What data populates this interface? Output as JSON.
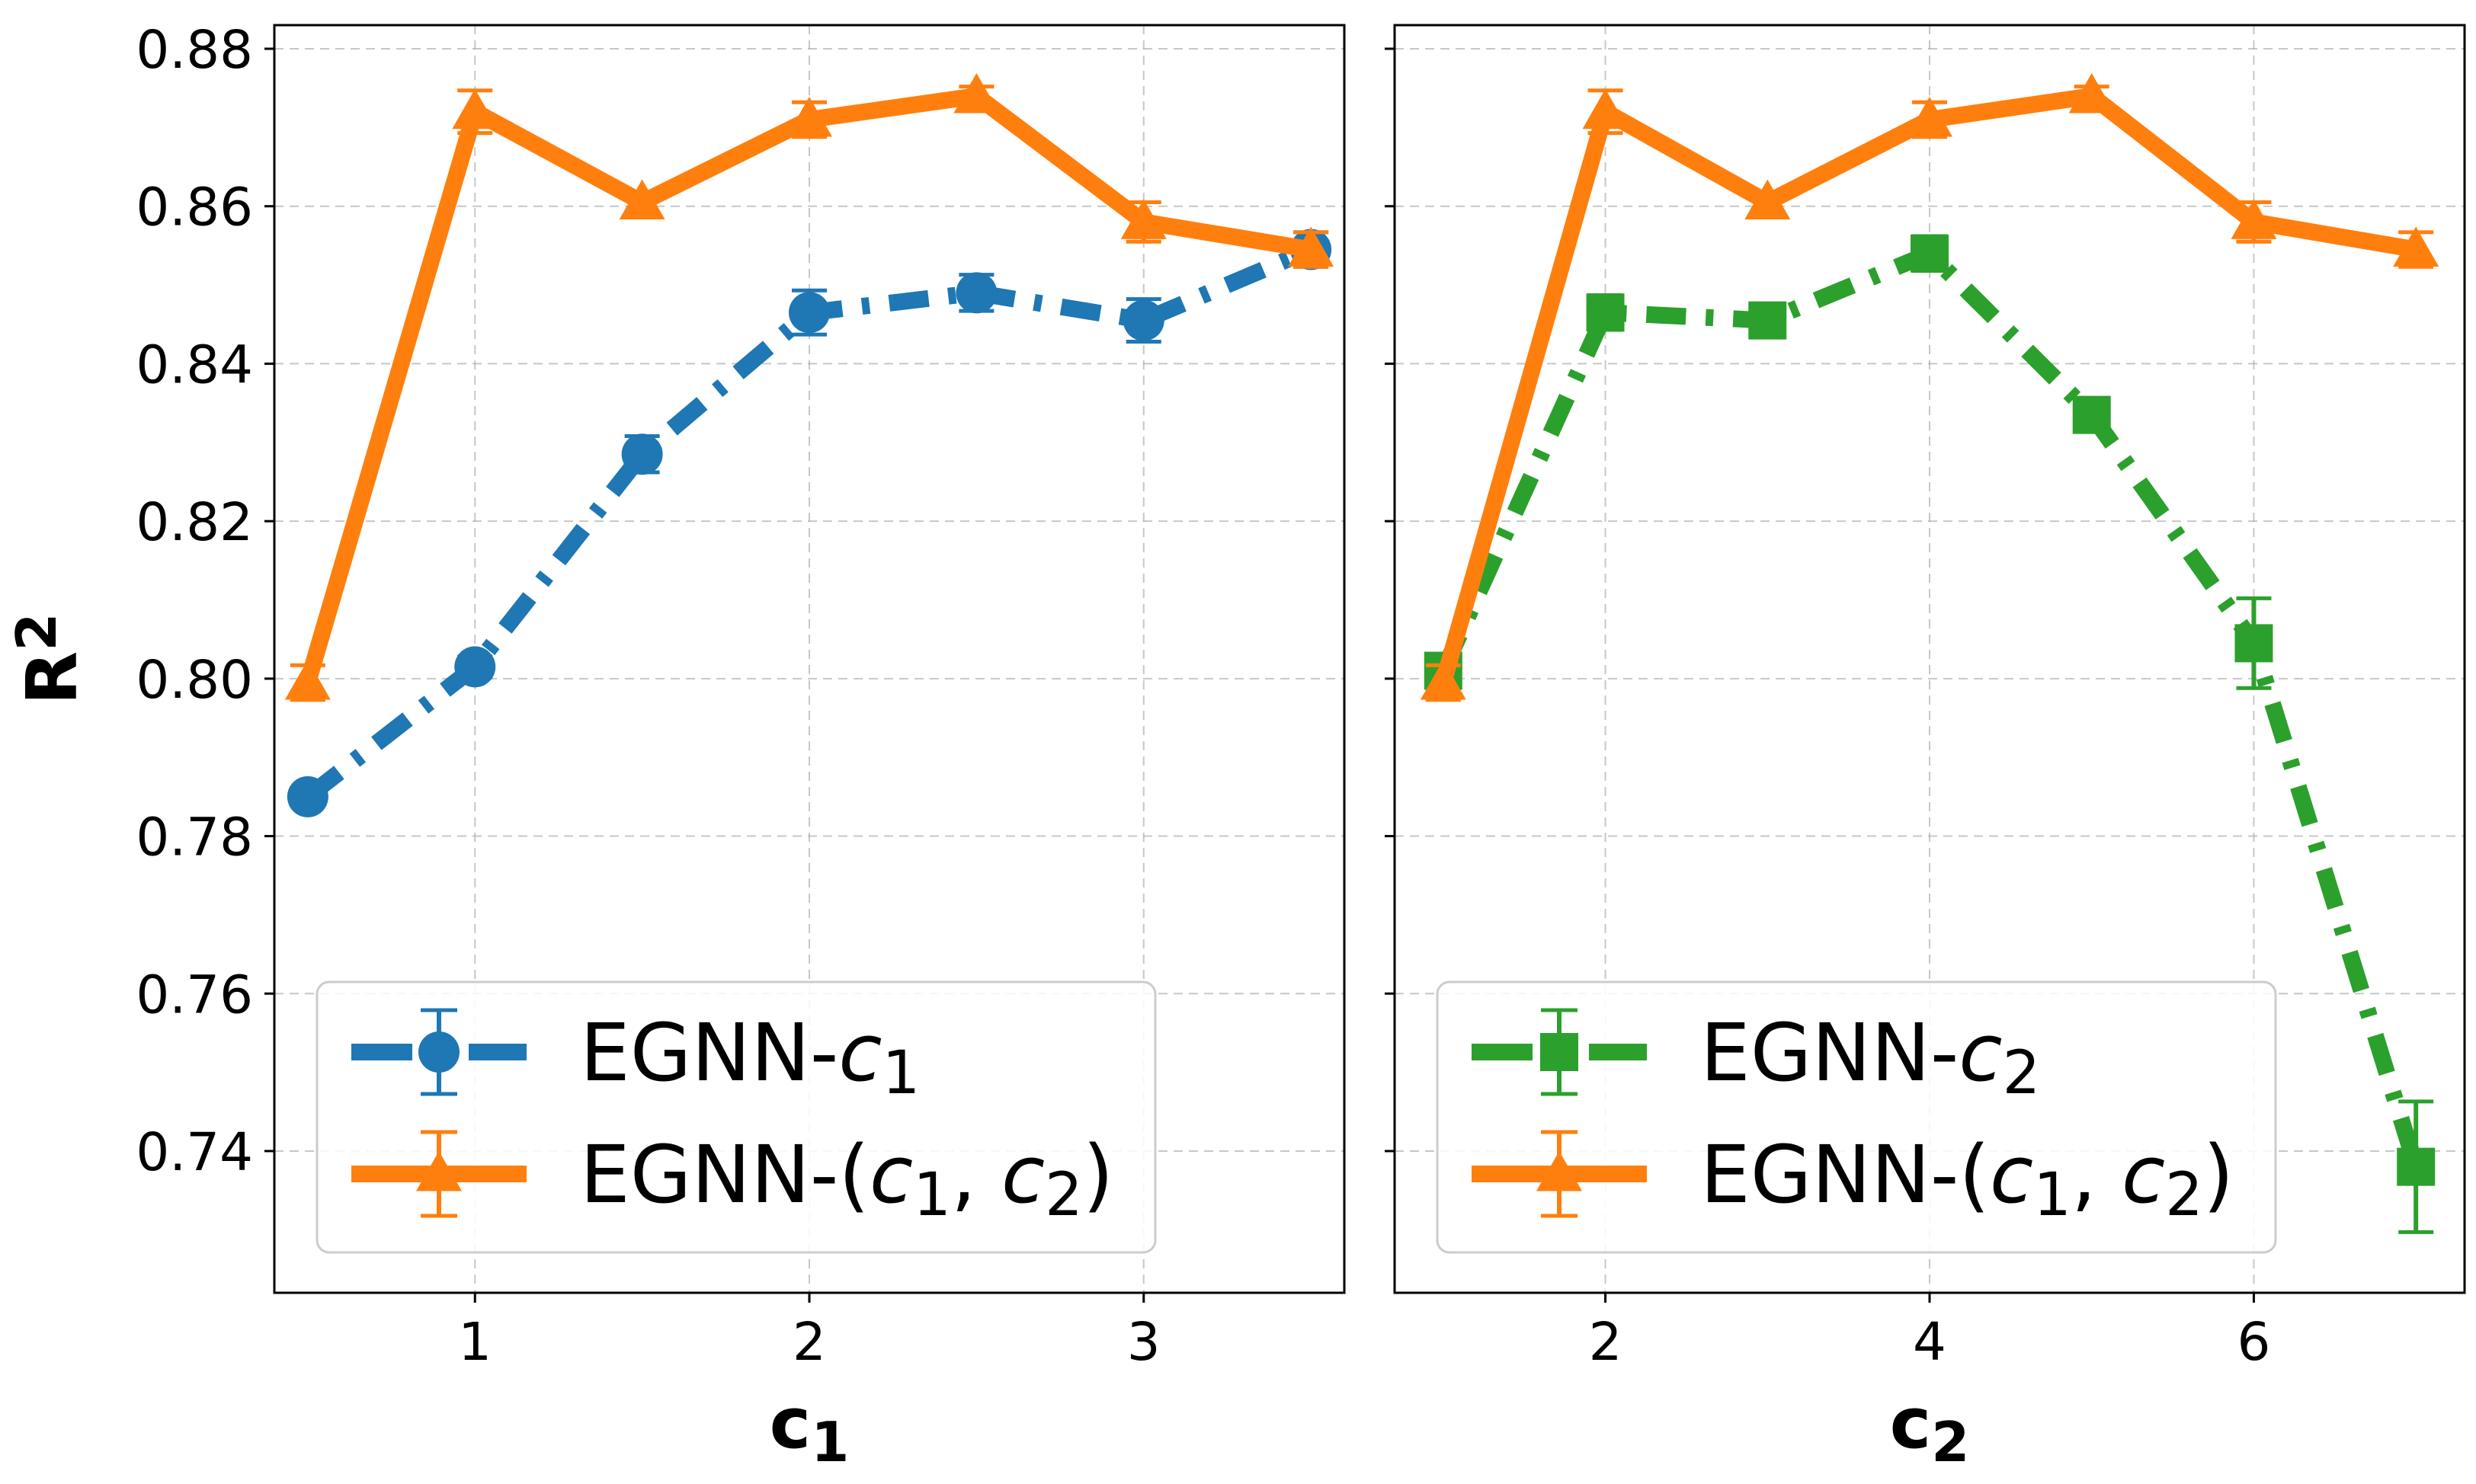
{
  "chart_data": [
    {
      "type": "line",
      "panel": "left",
      "xlabel": "c",
      "xlabel_sub": "1",
      "ylabel": "R",
      "ylabel_sup": "2",
      "xlim": [
        0.4,
        3.6
      ],
      "ylim": [
        0.722,
        0.883
      ],
      "xticks": [
        1,
        2,
        3
      ],
      "yticks": [
        0.74,
        0.76,
        0.78,
        0.8,
        0.82,
        0.84,
        0.86,
        0.88
      ],
      "ytick_labels": [
        "0.74",
        "0.76",
        "0.78",
        "0.80",
        "0.82",
        "0.84",
        "0.86",
        "0.88"
      ],
      "grid": true,
      "legend_position": "lower-left",
      "series": [
        {
          "name": "EGNN-c1",
          "legend_prefix": "EGNN-",
          "legend_var": "c",
          "legend_sub": "1",
          "color": "#1f77b4",
          "marker": "circle",
          "linestyle": "dashdot",
          "x": [
            0.5,
            1.0,
            1.5,
            2.0,
            2.5,
            3.0,
            3.5
          ],
          "y": [
            0.785,
            0.8015,
            0.8285,
            0.8465,
            0.849,
            0.8455,
            0.8545
          ],
          "err": [
            0.0006,
            0.0013,
            0.0023,
            0.0028,
            0.0023,
            0.0027,
            0.0022
          ]
        },
        {
          "name": "EGNN-(c1, c2)",
          "legend_prefix": "EGNN-(",
          "legend_var": "c",
          "legend_sub": "1",
          "legend_sep": ", ",
          "legend_var2": "c",
          "legend_sub2": "2",
          "legend_suffix": ")",
          "color": "#ff7f0e",
          "marker": "triangle",
          "linestyle": "solid",
          "x": [
            0.5,
            1.0,
            1.5,
            2.0,
            2.5,
            3.0,
            3.5
          ],
          "y": [
            0.7995,
            0.872,
            0.8605,
            0.871,
            0.874,
            0.858,
            0.8545
          ],
          "err": [
            0.0022,
            0.0027,
            0.0012,
            0.0022,
            0.0012,
            0.0025,
            0.0022
          ]
        }
      ]
    },
    {
      "type": "line",
      "panel": "right",
      "xlabel": "c",
      "xlabel_sub": "2",
      "xlim": [
        0.7,
        7.3
      ],
      "ylim": [
        0.722,
        0.883
      ],
      "xticks": [
        2,
        4,
        6
      ],
      "yticks": [
        0.74,
        0.76,
        0.78,
        0.8,
        0.82,
        0.84,
        0.86,
        0.88
      ],
      "grid": true,
      "legend_position": "lower-left",
      "series": [
        {
          "name": "EGNN-c2",
          "legend_prefix": "EGNN-",
          "legend_var": "c",
          "legend_sub": "2",
          "color": "#2ca02c",
          "marker": "square",
          "linestyle": "dashdot",
          "x": [
            1,
            2,
            3,
            4,
            5,
            6,
            7
          ],
          "y": [
            0.801,
            0.8465,
            0.8455,
            0.854,
            0.8335,
            0.8045,
            0.738
          ],
          "err": [
            0.0012,
            0.0022,
            0.0017,
            0.0022,
            0.0018,
            0.0057,
            0.0083
          ]
        },
        {
          "name": "EGNN-(c1, c2)",
          "legend_prefix": "EGNN-(",
          "legend_var": "c",
          "legend_sub": "1",
          "legend_sep": ", ",
          "legend_var2": "c",
          "legend_sub2": "2",
          "legend_suffix": ")",
          "color": "#ff7f0e",
          "marker": "triangle",
          "linestyle": "solid",
          "x": [
            1,
            2,
            3,
            4,
            5,
            6,
            7
          ],
          "y": [
            0.7995,
            0.872,
            0.8605,
            0.871,
            0.874,
            0.858,
            0.8545
          ],
          "err": [
            0.0022,
            0.0027,
            0.0012,
            0.0022,
            0.0012,
            0.0025,
            0.0022
          ]
        }
      ]
    }
  ]
}
